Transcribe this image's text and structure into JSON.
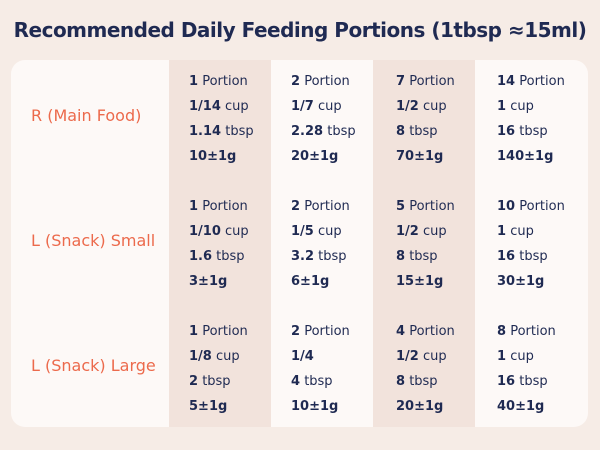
{
  "title": "Recommended Daily Feeding Portions (1tbsp ≈15ml)",
  "colors": {
    "label": "#ec6a4c",
    "text": "#1f2a52",
    "stripe": "#f2e3dc",
    "card": "#fdf9f7",
    "background": "#f6ece6"
  },
  "rows": [
    {
      "label": "R (Main Food)",
      "cells": [
        [
          [
            "1",
            "Portion"
          ],
          [
            "1/14",
            "cup"
          ],
          [
            "1.14",
            "tbsp"
          ],
          [
            "10±1g",
            ""
          ]
        ],
        [
          [
            "2",
            "Portion"
          ],
          [
            "1/7",
            "cup"
          ],
          [
            "2.28",
            "tbsp"
          ],
          [
            "20±1g",
            ""
          ]
        ],
        [
          [
            "7",
            "Portion"
          ],
          [
            "1/2",
            "cup"
          ],
          [
            "8",
            "tbsp"
          ],
          [
            "70±1g",
            ""
          ]
        ],
        [
          [
            "14",
            "Portion"
          ],
          [
            "1",
            "cup"
          ],
          [
            "16",
            "tbsp"
          ],
          [
            "140±1g",
            ""
          ]
        ]
      ]
    },
    {
      "label": "L (Snack) Small",
      "cells": [
        [
          [
            "1",
            "Portion"
          ],
          [
            "1/10",
            "cup"
          ],
          [
            "1.6",
            "tbsp"
          ],
          [
            "3±1g",
            ""
          ]
        ],
        [
          [
            "2",
            "Portion"
          ],
          [
            "1/5",
            "cup"
          ],
          [
            "3.2",
            "tbsp"
          ],
          [
            "6±1g",
            ""
          ]
        ],
        [
          [
            "5",
            "Portion"
          ],
          [
            "1/2",
            "cup"
          ],
          [
            "8",
            "tbsp"
          ],
          [
            "15±1g",
            ""
          ]
        ],
        [
          [
            "10",
            "Portion"
          ],
          [
            "1",
            "cup"
          ],
          [
            "16",
            "tbsp"
          ],
          [
            "30±1g",
            ""
          ]
        ]
      ]
    },
    {
      "label": "L (Snack) Large",
      "cells": [
        [
          [
            "1",
            "Portion"
          ],
          [
            "1/8",
            "cup"
          ],
          [
            "2",
            "tbsp"
          ],
          [
            "5±1g",
            ""
          ]
        ],
        [
          [
            "2",
            "Portion"
          ],
          [
            "1/4",
            ""
          ],
          [
            "4",
            "tbsp"
          ],
          [
            "10±1g",
            ""
          ]
        ],
        [
          [
            "4",
            "Portion"
          ],
          [
            "1/2",
            "cup"
          ],
          [
            "8",
            "tbsp"
          ],
          [
            "20±1g",
            ""
          ]
        ],
        [
          [
            "8",
            "Portion"
          ],
          [
            "1",
            "cup"
          ],
          [
            "16",
            "tbsp"
          ],
          [
            "40±1g",
            ""
          ]
        ]
      ]
    }
  ]
}
